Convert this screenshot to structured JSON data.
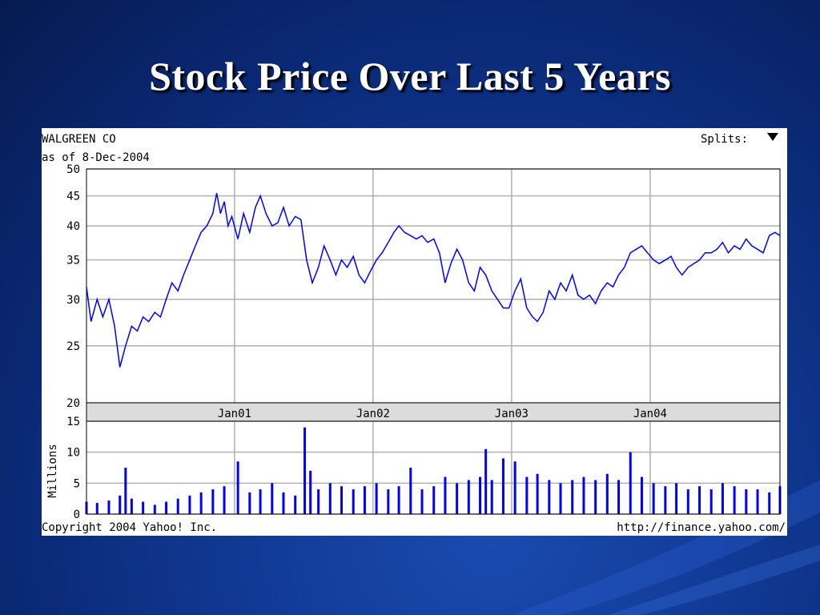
{
  "slide": {
    "title": "Stock Price Over Last 5 Years"
  },
  "chart_data": {
    "type": "line",
    "company": "WALGREEN CO",
    "as_of": "as of 8-Dec-2004",
    "splits_label": "Splits:",
    "copyright": "Copyright 2004 Yahoo! Inc.",
    "source_url": "http://finance.yahoo.com/",
    "line_color": "#0000ff",
    "y_scale": "log",
    "ylim": [
      20,
      50
    ],
    "y_ticks": [
      20,
      25,
      30,
      35,
      40,
      45,
      50
    ],
    "x_range": [
      "1999-12-08",
      "2004-12-08"
    ],
    "x_ticks": [
      {
        "date": "2001-01-01",
        "label": "Jan01"
      },
      {
        "date": "2002-01-01",
        "label": "Jan02"
      },
      {
        "date": "2003-01-01",
        "label": "Jan03"
      },
      {
        "date": "2004-01-01",
        "label": "Jan04"
      }
    ],
    "price_series": {
      "name": "",
      "points": [
        [
          "1999-12-08",
          31.5
        ],
        [
          "1999-12-20",
          27.5
        ],
        [
          "2000-01-05",
          30.0
        ],
        [
          "2000-01-20",
          28.0
        ],
        [
          "2000-02-05",
          30.0
        ],
        [
          "2000-02-20",
          27.0
        ],
        [
          "2000-03-05",
          23.0
        ],
        [
          "2000-03-20",
          25.0
        ],
        [
          "2000-04-05",
          27.0
        ],
        [
          "2000-04-20",
          26.5
        ],
        [
          "2000-05-05",
          28.0
        ],
        [
          "2000-05-20",
          27.5
        ],
        [
          "2000-06-05",
          28.5
        ],
        [
          "2000-06-20",
          28.0
        ],
        [
          "2000-07-05",
          30.0
        ],
        [
          "2000-07-20",
          32.0
        ],
        [
          "2000-08-05",
          31.0
        ],
        [
          "2000-08-20",
          33.0
        ],
        [
          "2000-09-05",
          35.0
        ],
        [
          "2000-09-20",
          37.0
        ],
        [
          "2000-10-05",
          39.0
        ],
        [
          "2000-10-20",
          40.0
        ],
        [
          "2000-11-05",
          42.0
        ],
        [
          "2000-11-15",
          45.5
        ],
        [
          "2000-11-25",
          42.0
        ],
        [
          "2000-12-05",
          44.0
        ],
        [
          "2000-12-15",
          40.0
        ],
        [
          "2000-12-25",
          41.5
        ],
        [
          "2001-01-10",
          38.0
        ],
        [
          "2001-01-25",
          42.0
        ],
        [
          "2001-02-10",
          39.0
        ],
        [
          "2001-02-25",
          43.0
        ],
        [
          "2001-03-10",
          45.0
        ],
        [
          "2001-03-25",
          42.0
        ],
        [
          "2001-04-10",
          40.0
        ],
        [
          "2001-04-25",
          40.5
        ],
        [
          "2001-05-10",
          43.0
        ],
        [
          "2001-05-25",
          40.0
        ],
        [
          "2001-06-10",
          41.5
        ],
        [
          "2001-06-25",
          41.0
        ],
        [
          "2001-07-10",
          35.0
        ],
        [
          "2001-07-25",
          32.0
        ],
        [
          "2001-08-10",
          34.0
        ],
        [
          "2001-08-25",
          37.0
        ],
        [
          "2001-09-10",
          35.0
        ],
        [
          "2001-09-25",
          33.0
        ],
        [
          "2001-10-10",
          35.0
        ],
        [
          "2001-10-25",
          34.0
        ],
        [
          "2001-11-10",
          35.5
        ],
        [
          "2001-11-25",
          33.0
        ],
        [
          "2001-12-10",
          32.0
        ],
        [
          "2001-12-25",
          33.5
        ],
        [
          "2002-01-10",
          35.0
        ],
        [
          "2002-01-25",
          36.0
        ],
        [
          "2002-02-10",
          37.5
        ],
        [
          "2002-02-25",
          39.0
        ],
        [
          "2002-03-10",
          40.0
        ],
        [
          "2002-03-25",
          39.0
        ],
        [
          "2002-04-10",
          38.5
        ],
        [
          "2002-04-25",
          38.0
        ],
        [
          "2002-05-10",
          38.5
        ],
        [
          "2002-05-25",
          37.5
        ],
        [
          "2002-06-10",
          38.0
        ],
        [
          "2002-06-25",
          36.0
        ],
        [
          "2002-07-10",
          32.0
        ],
        [
          "2002-07-25",
          34.5
        ],
        [
          "2002-08-10",
          36.5
        ],
        [
          "2002-08-25",
          35.0
        ],
        [
          "2002-09-10",
          32.0
        ],
        [
          "2002-09-25",
          31.0
        ],
        [
          "2002-10-10",
          34.0
        ],
        [
          "2002-10-25",
          33.0
        ],
        [
          "2002-11-10",
          31.0
        ],
        [
          "2002-11-25",
          30.0
        ],
        [
          "2002-12-10",
          29.0
        ],
        [
          "2002-12-25",
          29.0
        ],
        [
          "2003-01-10",
          31.0
        ],
        [
          "2003-01-25",
          32.5
        ],
        [
          "2003-02-10",
          29.0
        ],
        [
          "2003-02-25",
          28.0
        ],
        [
          "2003-03-10",
          27.5
        ],
        [
          "2003-03-25",
          28.5
        ],
        [
          "2003-04-10",
          31.0
        ],
        [
          "2003-04-25",
          30.0
        ],
        [
          "2003-05-10",
          32.0
        ],
        [
          "2003-05-25",
          31.0
        ],
        [
          "2003-06-10",
          33.0
        ],
        [
          "2003-06-25",
          30.5
        ],
        [
          "2003-07-10",
          30.0
        ],
        [
          "2003-07-25",
          30.5
        ],
        [
          "2003-08-10",
          29.5
        ],
        [
          "2003-08-25",
          31.0
        ],
        [
          "2003-09-10",
          32.0
        ],
        [
          "2003-09-25",
          31.5
        ],
        [
          "2003-10-10",
          33.0
        ],
        [
          "2003-10-25",
          34.0
        ],
        [
          "2003-11-10",
          36.0
        ],
        [
          "2003-11-25",
          36.5
        ],
        [
          "2003-12-10",
          37.0
        ],
        [
          "2003-12-25",
          36.0
        ],
        [
          "2004-01-10",
          35.0
        ],
        [
          "2004-01-25",
          34.5
        ],
        [
          "2004-02-10",
          35.0
        ],
        [
          "2004-02-25",
          35.5
        ],
        [
          "2004-03-10",
          34.0
        ],
        [
          "2004-03-25",
          33.0
        ],
        [
          "2004-04-10",
          34.0
        ],
        [
          "2004-04-25",
          34.5
        ],
        [
          "2004-05-10",
          35.0
        ],
        [
          "2004-05-25",
          36.0
        ],
        [
          "2004-06-10",
          36.0
        ],
        [
          "2004-06-25",
          36.5
        ],
        [
          "2004-07-10",
          37.5
        ],
        [
          "2004-07-25",
          36.0
        ],
        [
          "2004-08-10",
          37.0
        ],
        [
          "2004-08-25",
          36.5
        ],
        [
          "2004-09-10",
          38.0
        ],
        [
          "2004-09-25",
          37.0
        ],
        [
          "2004-10-10",
          36.5
        ],
        [
          "2004-10-25",
          36.0
        ],
        [
          "2004-11-10",
          38.5
        ],
        [
          "2004-11-25",
          39.0
        ],
        [
          "2004-12-08",
          38.5
        ]
      ]
    },
    "volume_panel": {
      "type": "bar",
      "ylabel": "Millions",
      "ylim": [
        0,
        15
      ],
      "y_ticks": [
        0,
        5,
        10,
        15
      ],
      "bar_color": "#0000ff",
      "points": [
        [
          "1999-12-08",
          2.0
        ],
        [
          "2000-01-05",
          1.8
        ],
        [
          "2000-02-05",
          2.2
        ],
        [
          "2000-03-05",
          3.0
        ],
        [
          "2000-03-20",
          7.5
        ],
        [
          "2000-04-05",
          2.5
        ],
        [
          "2000-05-05",
          2.0
        ],
        [
          "2000-06-05",
          1.5
        ],
        [
          "2000-07-05",
          2.0
        ],
        [
          "2000-08-05",
          2.5
        ],
        [
          "2000-09-05",
          3.0
        ],
        [
          "2000-10-05",
          3.5
        ],
        [
          "2000-11-05",
          4.0
        ],
        [
          "2000-12-05",
          4.5
        ],
        [
          "2001-01-10",
          8.5
        ],
        [
          "2001-02-10",
          3.5
        ],
        [
          "2001-03-10",
          4.0
        ],
        [
          "2001-04-10",
          5.0
        ],
        [
          "2001-05-10",
          3.5
        ],
        [
          "2001-06-10",
          3.0
        ],
        [
          "2001-07-05",
          14.0
        ],
        [
          "2001-07-20",
          7.0
        ],
        [
          "2001-08-10",
          4.0
        ],
        [
          "2001-09-10",
          5.0
        ],
        [
          "2001-10-10",
          4.5
        ],
        [
          "2001-11-10",
          4.0
        ],
        [
          "2001-12-10",
          4.5
        ],
        [
          "2002-01-10",
          5.0
        ],
        [
          "2002-02-10",
          4.0
        ],
        [
          "2002-03-10",
          4.5
        ],
        [
          "2002-04-10",
          7.5
        ],
        [
          "2002-05-10",
          4.0
        ],
        [
          "2002-06-10",
          4.5
        ],
        [
          "2002-07-10",
          6.0
        ],
        [
          "2002-08-10",
          5.0
        ],
        [
          "2002-09-10",
          5.5
        ],
        [
          "2002-10-10",
          6.0
        ],
        [
          "2002-10-25",
          10.5
        ],
        [
          "2002-11-10",
          5.5
        ],
        [
          "2002-12-10",
          9.0
        ],
        [
          "2003-01-10",
          8.5
        ],
        [
          "2003-02-10",
          6.0
        ],
        [
          "2003-03-10",
          6.5
        ],
        [
          "2003-04-10",
          5.5
        ],
        [
          "2003-05-10",
          5.0
        ],
        [
          "2003-06-10",
          5.5
        ],
        [
          "2003-07-10",
          6.0
        ],
        [
          "2003-08-10",
          5.5
        ],
        [
          "2003-09-10",
          6.5
        ],
        [
          "2003-10-10",
          5.5
        ],
        [
          "2003-11-10",
          10.0
        ],
        [
          "2003-12-10",
          6.0
        ],
        [
          "2004-01-10",
          5.0
        ],
        [
          "2004-02-10",
          4.5
        ],
        [
          "2004-03-10",
          5.0
        ],
        [
          "2004-04-10",
          4.0
        ],
        [
          "2004-05-10",
          4.5
        ],
        [
          "2004-06-10",
          4.0
        ],
        [
          "2004-07-10",
          5.0
        ],
        [
          "2004-08-10",
          4.5
        ],
        [
          "2004-09-10",
          4.0
        ],
        [
          "2004-10-10",
          4.0
        ],
        [
          "2004-11-10",
          3.5
        ],
        [
          "2004-12-08",
          4.5
        ]
      ]
    }
  }
}
